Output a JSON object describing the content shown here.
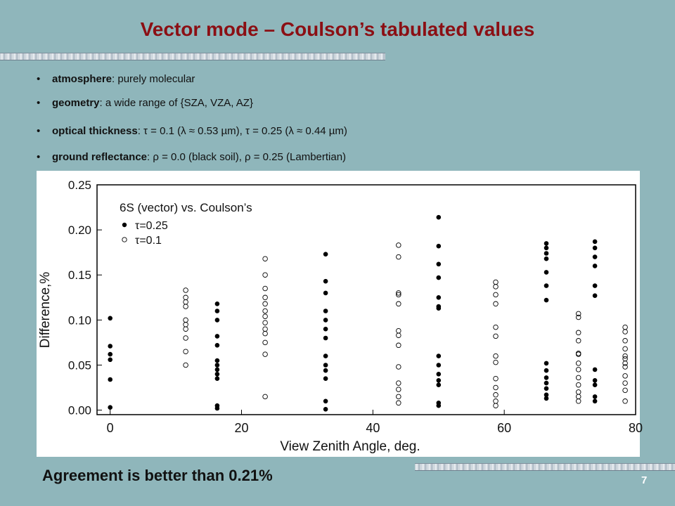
{
  "slide": {
    "title": "Vector mode – Coulson’s tabulated values",
    "bullets": [
      {
        "marker": "•",
        "label": "atmosphere",
        "rest": ": purely molecular"
      },
      {
        "marker": "•",
        "label": "geometry",
        "rest": ": a wide range of {SZA, VZA, AZ}"
      },
      {
        "marker": "•",
        "label": "optical thickness",
        "rest": ": τ = 0.1 (λ ≈ 0.53 µm), τ = 0.25 (λ ≈ 0.44 µm)"
      },
      {
        "marker": "•",
        "label": "ground reflectance",
        "rest": ": ρ = 0.0 (black soil), ρ = 0.25 (Lambertian)"
      }
    ],
    "footer": "Agreement is better than 0.21%",
    "page_number": "7"
  },
  "chart_data": {
    "type": "scatter",
    "title": "6S (vector) vs. Coulson’s",
    "xlabel": "View Zenith Angle, deg.",
    "ylabel": "Difference,%",
    "xlim": [
      -2,
      80
    ],
    "ylim": [
      -0.005,
      0.25
    ],
    "xticks": [
      "0",
      "20",
      "40",
      "60",
      "80"
    ],
    "yticks": [
      "0.00",
      "0.05",
      "0.10",
      "0.15",
      "0.20",
      "0.25"
    ],
    "grid": false,
    "legend_position": "top-left",
    "series": [
      {
        "name": "τ=0.25",
        "marker": "filled-circle",
        "points": [
          [
            0,
            0.102
          ],
          [
            0,
            0.071
          ],
          [
            0,
            0.062
          ],
          [
            0,
            0.056
          ],
          [
            0,
            0.034
          ],
          [
            0,
            0.003
          ],
          [
            16.3,
            0.118
          ],
          [
            16.3,
            0.11
          ],
          [
            16.3,
            0.1
          ],
          [
            16.3,
            0.082
          ],
          [
            16.3,
            0.072
          ],
          [
            16.3,
            0.055
          ],
          [
            16.3,
            0.05
          ],
          [
            16.3,
            0.045
          ],
          [
            16.3,
            0.04
          ],
          [
            16.3,
            0.035
          ],
          [
            16.3,
            0.005
          ],
          [
            16.3,
            0.002
          ],
          [
            32.8,
            0.173
          ],
          [
            32.8,
            0.143
          ],
          [
            32.8,
            0.13
          ],
          [
            32.8,
            0.11
          ],
          [
            32.8,
            0.1
          ],
          [
            32.8,
            0.09
          ],
          [
            32.8,
            0.08
          ],
          [
            32.8,
            0.06
          ],
          [
            32.8,
            0.05
          ],
          [
            32.8,
            0.044
          ],
          [
            32.8,
            0.035
          ],
          [
            32.8,
            0.01
          ],
          [
            32.8,
            0.001
          ],
          [
            50,
            0.214
          ],
          [
            50,
            0.182
          ],
          [
            50,
            0.162
          ],
          [
            50,
            0.147
          ],
          [
            50,
            0.125
          ],
          [
            50,
            0.115
          ],
          [
            50,
            0.113
          ],
          [
            50,
            0.06
          ],
          [
            50,
            0.05
          ],
          [
            50,
            0.04
          ],
          [
            50,
            0.033
          ],
          [
            50,
            0.028
          ],
          [
            50,
            0.008
          ],
          [
            50,
            0.005
          ],
          [
            66.4,
            0.185
          ],
          [
            66.4,
            0.18
          ],
          [
            66.4,
            0.174
          ],
          [
            66.4,
            0.168
          ],
          [
            66.4,
            0.153
          ],
          [
            66.4,
            0.138
          ],
          [
            66.4,
            0.122
          ],
          [
            66.4,
            0.052
          ],
          [
            66.4,
            0.044
          ],
          [
            66.4,
            0.036
          ],
          [
            66.4,
            0.03
          ],
          [
            66.4,
            0.024
          ],
          [
            66.4,
            0.017
          ],
          [
            66.4,
            0.013
          ],
          [
            73.8,
            0.187
          ],
          [
            73.8,
            0.18
          ],
          [
            73.8,
            0.17
          ],
          [
            73.8,
            0.16
          ],
          [
            73.8,
            0.138
          ],
          [
            73.8,
            0.127
          ],
          [
            73.8,
            0.045
          ],
          [
            73.8,
            0.033
          ],
          [
            73.8,
            0.028
          ],
          [
            73.8,
            0.015
          ],
          [
            73.8,
            0.01
          ]
        ]
      },
      {
        "name": "τ=0.1",
        "marker": "open-circle",
        "points": [
          [
            11.5,
            0.133
          ],
          [
            11.5,
            0.125
          ],
          [
            11.5,
            0.12
          ],
          [
            11.5,
            0.115
          ],
          [
            11.5,
            0.1
          ],
          [
            11.5,
            0.095
          ],
          [
            11.5,
            0.09
          ],
          [
            11.5,
            0.08
          ],
          [
            11.5,
            0.065
          ],
          [
            11.5,
            0.05
          ],
          [
            23.6,
            0.168
          ],
          [
            23.6,
            0.15
          ],
          [
            23.6,
            0.135
          ],
          [
            23.6,
            0.125
          ],
          [
            23.6,
            0.118
          ],
          [
            23.6,
            0.11
          ],
          [
            23.6,
            0.104
          ],
          [
            23.6,
            0.097
          ],
          [
            23.6,
            0.09
          ],
          [
            23.6,
            0.085
          ],
          [
            23.6,
            0.075
          ],
          [
            23.6,
            0.062
          ],
          [
            23.6,
            0.015
          ],
          [
            43.9,
            0.183
          ],
          [
            43.9,
            0.17
          ],
          [
            43.9,
            0.13
          ],
          [
            43.9,
            0.128
          ],
          [
            43.9,
            0.118
          ],
          [
            43.9,
            0.088
          ],
          [
            43.9,
            0.083
          ],
          [
            43.9,
            0.072
          ],
          [
            43.9,
            0.048
          ],
          [
            43.9,
            0.03
          ],
          [
            43.9,
            0.023
          ],
          [
            43.9,
            0.015
          ],
          [
            43.9,
            0.008
          ],
          [
            58.7,
            0.142
          ],
          [
            58.7,
            0.137
          ],
          [
            58.7,
            0.128
          ],
          [
            58.7,
            0.118
          ],
          [
            58.7,
            0.092
          ],
          [
            58.7,
            0.082
          ],
          [
            58.7,
            0.06
          ],
          [
            58.7,
            0.053
          ],
          [
            58.7,
            0.035
          ],
          [
            58.7,
            0.025
          ],
          [
            58.7,
            0.017
          ],
          [
            58.7,
            0.01
          ],
          [
            58.7,
            0.005
          ],
          [
            71.3,
            0.107
          ],
          [
            71.3,
            0.103
          ],
          [
            71.3,
            0.086
          ],
          [
            71.3,
            0.077
          ],
          [
            71.3,
            0.063
          ],
          [
            71.3,
            0.062
          ],
          [
            71.3,
            0.052
          ],
          [
            71.3,
            0.045
          ],
          [
            71.3,
            0.036
          ],
          [
            71.3,
            0.028
          ],
          [
            71.3,
            0.02
          ],
          [
            71.3,
            0.015
          ],
          [
            71.3,
            0.01
          ],
          [
            78.4,
            0.092
          ],
          [
            78.4,
            0.087
          ],
          [
            78.4,
            0.077
          ],
          [
            78.4,
            0.068
          ],
          [
            78.4,
            0.06
          ],
          [
            78.4,
            0.057
          ],
          [
            78.4,
            0.052
          ],
          [
            78.4,
            0.048
          ],
          [
            78.4,
            0.038
          ],
          [
            78.4,
            0.03
          ],
          [
            78.4,
            0.022
          ],
          [
            78.4,
            0.01
          ]
        ]
      }
    ]
  }
}
